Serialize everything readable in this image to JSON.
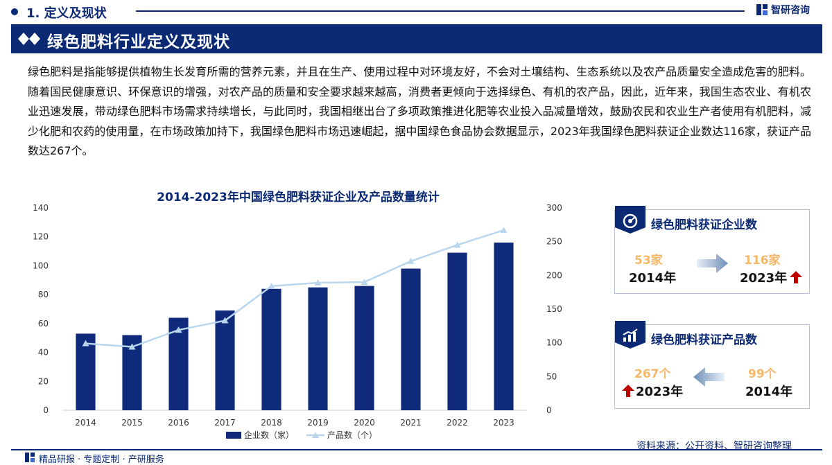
{
  "header": {
    "section_title": "1. 定义及现状",
    "logo_text": "智研咨询"
  },
  "banner": {
    "title": "绿色肥料行业定义及现状"
  },
  "paragraph": "绿色肥料是指能够提供植物生长发育所需的营养元素，并且在生产、使用过程中对环境友好，不会对土壤结构、生态系统以及农产品质量安全造成危害的肥料。随着国民健康意识、环保意识的增强，对农产品的质量和安全要求越来越高，消费者更倾向于选择绿色、有机的农产品，因此，近年来，我国生态农业、有机农业迅速发展，带动绿色肥料市场需求持续增长，与此同时，我国相继出台了多项政策推进化肥等农业投入品减量增效，鼓励农民和农业生产者使用有机肥料，减少化肥和农药的使用量，在市场政策加持下，我国绿色肥料市场迅速崛起，据中国绿色食品协会数据显示，2023年我国绿色肥料获证企业数达116家，获证产品数达267个。",
  "chart_data": {
    "type": "bar",
    "title": "2014-2023年中国绿色肥料获证企业及产品数量统计",
    "categories": [
      "2014",
      "2015",
      "2016",
      "2017",
      "2018",
      "2019",
      "2020",
      "2021",
      "2022",
      "2023"
    ],
    "series": [
      {
        "name": "企业数（家）",
        "type": "bar",
        "axis": "left",
        "values": [
          53,
          52,
          64,
          69,
          84,
          85,
          86,
          98,
          109,
          116
        ],
        "color": "#0f2a7a"
      },
      {
        "name": "产品数（个）",
        "type": "line",
        "axis": "right",
        "values": [
          99,
          94,
          119,
          133,
          184,
          189,
          190,
          221,
          245,
          267
        ],
        "color": "#b9d6ec"
      }
    ],
    "y_left": {
      "min": 0,
      "max": 140,
      "ticks": [
        0,
        20,
        40,
        60,
        80,
        100,
        120,
        140
      ]
    },
    "y_right": {
      "min": 0,
      "max": 300,
      "ticks": [
        0,
        50,
        100,
        150,
        200,
        250,
        300
      ]
    },
    "grid": false,
    "legend": "bottom"
  },
  "cards": {
    "enterprise": {
      "title": "绿色肥料获证企业数",
      "from_value": "53家",
      "from_year": "2014年",
      "to_value": "116家",
      "to_year": "2023年"
    },
    "product": {
      "title": "绿色肥料获证产品数",
      "latest_value": "267个",
      "latest_year": "2023年",
      "early_value": "99个",
      "early_year": "2014年"
    }
  },
  "source": "资料来源：公开资料、智研咨询整理",
  "footer": {
    "text": "精品研报 · 专题定制 · 产研服务"
  },
  "colors": {
    "navy": "#0b2a73",
    "bar": "#0f2a7a",
    "line": "#b9d6ec",
    "highlight": "#f5b86b",
    "up_arrow": "#c00000"
  }
}
